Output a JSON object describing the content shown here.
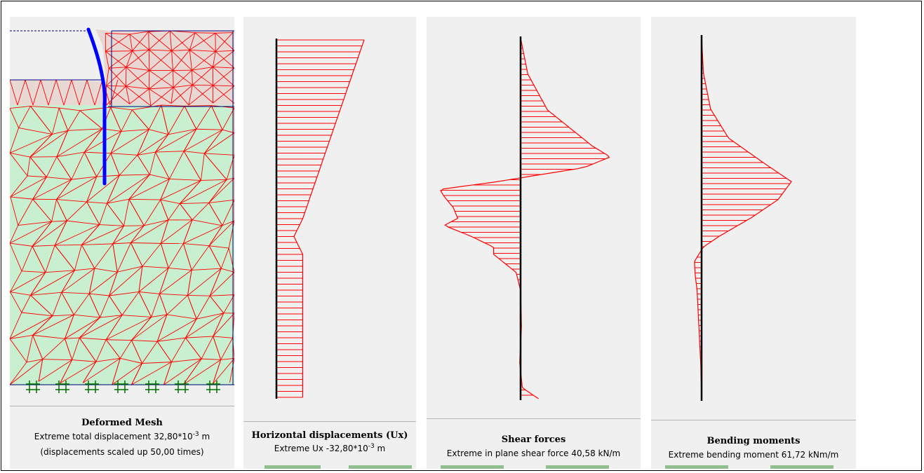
{
  "colors": {
    "mesh_line": "#ff0000",
    "soil_lower": "#c8f0d0",
    "soil_upper": "#e8d8d4",
    "wall": "#0000ff",
    "axis": "#000000",
    "fixity": "#007000",
    "panel_bg": "#f0f0f0"
  },
  "panels": {
    "deformed_mesh": {
      "title": "Deformed Mesh",
      "line1_text": "Extreme total displacement 32,80*10",
      "line1_exp": "-3",
      "line1_unit": " m",
      "line2": "(displacements scaled up 50,00 times)",
      "fixity_icon": "fixity-hash-icon"
    },
    "horizontal_displacements": {
      "title": "Horizontal displacements (Ux)",
      "line1_text": "Extreme Ux -32,80*10",
      "line1_exp": "-3",
      "line1_unit": "  m"
    },
    "shear_forces": {
      "title": "Shear forces",
      "line1": "Extreme in plane shear force 40,58 kN/m"
    },
    "bending_moments": {
      "title": "Bending moments",
      "line1": "Extreme bending moment 61,72  kNm/m"
    }
  },
  "chart_data": [
    {
      "type": "area",
      "name": "horizontal_displacement_profile",
      "title": "Horizontal displacements (Ux)",
      "depth_fraction": [
        0.0,
        0.1,
        0.2,
        0.3,
        0.4,
        0.45,
        0.5,
        0.55,
        0.6,
        1.0
      ],
      "relative_value": [
        1.0,
        0.86,
        0.72,
        0.58,
        0.44,
        0.37,
        0.3,
        0.2,
        0.3,
        0.3
      ]
    },
    {
      "type": "area",
      "name": "shear_force_profile",
      "title": "Shear forces",
      "depth_fraction": [
        0.0,
        0.1,
        0.2,
        0.25,
        0.3,
        0.33,
        0.36,
        0.38,
        0.4,
        0.42,
        0.44,
        0.47,
        0.5,
        0.52,
        0.55,
        0.58,
        0.6,
        0.62,
        0.65,
        0.7,
        0.8,
        0.9,
        0.97,
        1.0
      ],
      "relative_value": [
        0.0,
        0.08,
        0.3,
        0.55,
        0.8,
        1.0,
        0.7,
        0.2,
        -0.3,
        -0.9,
        -0.85,
        -0.75,
        -0.7,
        -0.85,
        -0.55,
        -0.3,
        -0.3,
        -0.2,
        -0.05,
        0.0,
        0.01,
        -0.01,
        0.02,
        0.2
      ]
    },
    {
      "type": "area",
      "name": "bending_moment_profile",
      "title": "Bending moments",
      "depth_fraction": [
        0.0,
        0.1,
        0.2,
        0.28,
        0.35,
        0.4,
        0.45,
        0.5,
        0.55,
        0.58,
        0.62,
        0.66,
        0.7,
        0.8,
        0.9,
        1.0
      ],
      "relative_value": [
        0.0,
        0.02,
        0.1,
        0.3,
        0.7,
        1.0,
        0.85,
        0.55,
        0.2,
        0.02,
        -0.08,
        -0.07,
        -0.05,
        -0.03,
        -0.01,
        0.0
      ]
    }
  ]
}
